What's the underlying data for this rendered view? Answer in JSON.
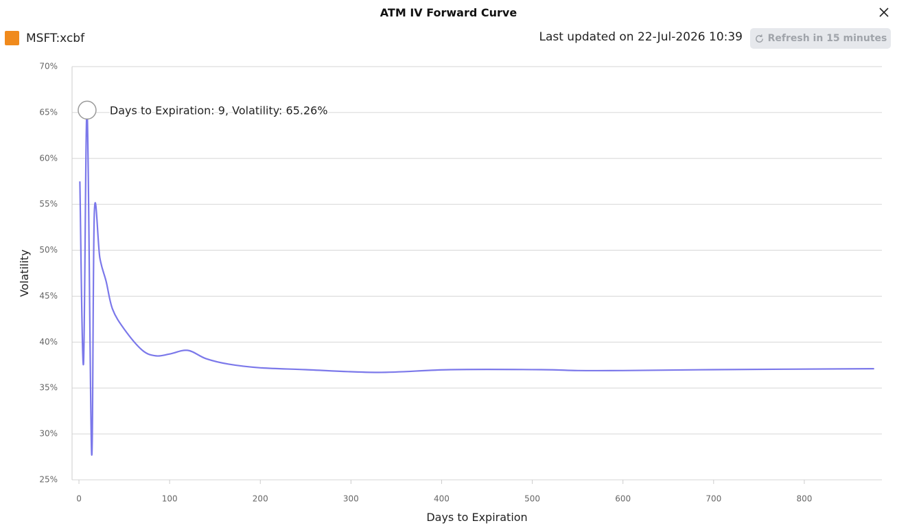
{
  "header": {
    "title": "ATM IV Forward Curve",
    "symbol": "MSFT:xcbf",
    "last_updated": "Last updated on 22-Jul-2026 10:39",
    "refresh_button": "Refresh in 15 minutes"
  },
  "chart_data": {
    "type": "line",
    "x_label": "Days to Expiration",
    "y_label": "Volatility",
    "color": "#7b78ea",
    "grid": true,
    "x": [
      1,
      5,
      9,
      14,
      17,
      23,
      30,
      37,
      50,
      70,
      85,
      100,
      120,
      140,
      165,
      200,
      250,
      330,
      410,
      510,
      550,
      600,
      700,
      877
    ],
    "values": [
      57.5,
      37.6,
      65.26,
      27.8,
      54.2,
      49.2,
      46.6,
      43.6,
      41.4,
      39.1,
      38.5,
      38.7,
      39.1,
      38.2,
      37.6,
      37.2,
      37.0,
      36.7,
      37.0,
      37.0,
      36.9,
      36.9,
      37.0,
      37.1
    ],
    "xlim": [
      -7.6,
      885.6
    ],
    "ylim": [
      25,
      70
    ],
    "xticks": [
      0,
      100,
      200,
      300,
      400,
      500,
      600,
      700,
      800
    ],
    "yticks": [
      {
        "value": 25,
        "label": "25%"
      },
      {
        "value": 30,
        "label": "30%"
      },
      {
        "value": 35,
        "label": "35%"
      },
      {
        "value": 40,
        "label": "40%"
      },
      {
        "value": 45,
        "label": "45%"
      },
      {
        "value": 50,
        "label": "50%"
      },
      {
        "value": 55,
        "label": "55%"
      },
      {
        "value": 60,
        "label": "60%"
      },
      {
        "value": 65,
        "label": "65%"
      },
      {
        "value": 70,
        "label": "70%"
      }
    ],
    "annotation": "Days to Expiration: 9, Volatility: 65.26%"
  }
}
